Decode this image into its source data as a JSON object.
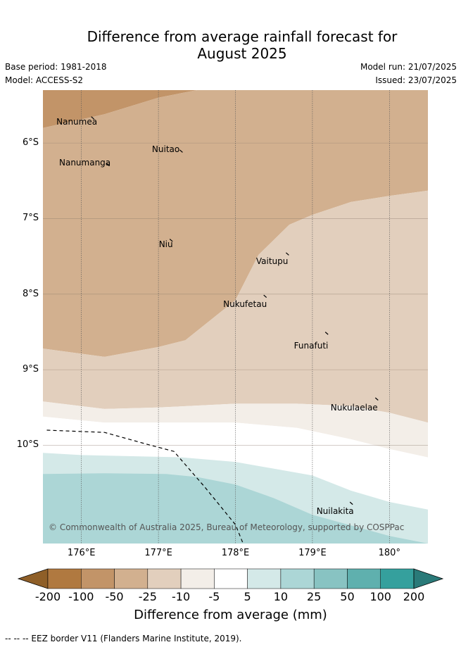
{
  "title_line1": "Difference from average rainfall forecast for",
  "title_line2": "August 2025",
  "meta": {
    "base_period": "Base period: 1981-2018",
    "model": "Model: ACCESS-S2",
    "model_run": "Model run: 21/07/2025",
    "issued": "Issued: 23/07/2025"
  },
  "axes": {
    "lat_labels": [
      "6°S",
      "7°S",
      "8°S",
      "9°S",
      "10°S"
    ],
    "lon_labels": [
      "176°E",
      "177°E",
      "178°E",
      "179°E",
      "180°"
    ]
  },
  "places": [
    {
      "name": "Nanumea",
      "lon": 176.15,
      "lat": -5.67
    },
    {
      "name": "Nuitao",
      "lon": 177.3,
      "lat": -6.11
    },
    {
      "name": "Nanumanga",
      "lon": 176.35,
      "lat": -6.29
    },
    {
      "name": "Niu",
      "lon": 177.17,
      "lat": -7.29
    },
    {
      "name": "Vaitupu",
      "lon": 178.68,
      "lat": -7.47
    },
    {
      "name": "Nukufetau",
      "lon": 178.39,
      "lat": -8.03
    },
    {
      "name": "Funafuti",
      "lon": 179.19,
      "lat": -8.52
    },
    {
      "name": "Nukulaelae",
      "lon": 179.84,
      "lat": -9.39
    },
    {
      "name": "Nuilakita",
      "lon": 179.51,
      "lat": -10.77
    }
  ],
  "copyright": "© Commonwealth of Australia 2025, Bureau of Meteorology, supported by COSPPac",
  "colorbar": {
    "labels": [
      "-200",
      "-100",
      "-50",
      "-25",
      "-10",
      "-5",
      "5",
      "10",
      "25",
      "50",
      "100",
      "200"
    ],
    "colors": [
      "#8f5f28",
      "#b07940",
      "#c29468",
      "#d2b08f",
      "#e2cfbd",
      "#f3eee8",
      "#ffffff",
      "#d4e9e8",
      "#acd6d6",
      "#88c3c2",
      "#5fb0ae",
      "#35a09d",
      "#2a7a79"
    ],
    "title": "Difference from average (mm)"
  },
  "footer": "--  --  -- EEZ border V11 (Flanders Marine Institute, 2019).",
  "chart_data": {
    "type": "map",
    "variable": "Difference from average rainfall (mm)",
    "period": "August 2025",
    "extent": {
      "lon": [
        175.5,
        180.5
      ],
      "lat": [
        -11.3,
        -5.3
      ]
    },
    "legend_classes_mm": [
      -200,
      -100,
      -50,
      -25,
      -10,
      -5,
      5,
      10,
      25,
      50,
      100,
      200
    ],
    "regions": [
      {
        "class": "-100 to -50",
        "color": "#c29468",
        "lonlat": [
          [
            175.5,
            -5.3
          ],
          [
            175.5,
            -5.8
          ],
          [
            176.3,
            -5.62
          ],
          [
            177.0,
            -5.4
          ],
          [
            177.5,
            -5.3
          ]
        ]
      },
      {
        "class": "-50 to -25",
        "color": "#d2b08f",
        "lonlat": [
          [
            175.5,
            -5.8
          ],
          [
            176.3,
            -5.62
          ],
          [
            177.0,
            -5.4
          ],
          [
            177.5,
            -5.3
          ],
          [
            180.5,
            -5.3
          ],
          [
            180.5,
            -6.63
          ],
          [
            180.0,
            -6.7
          ],
          [
            179.5,
            -6.78
          ],
          [
            179.0,
            -6.95
          ],
          [
            178.7,
            -7.08
          ],
          [
            178.3,
            -7.48
          ],
          [
            178.0,
            -8.08
          ],
          [
            177.35,
            -8.61
          ],
          [
            177.0,
            -8.7
          ],
          [
            176.3,
            -8.83
          ],
          [
            175.5,
            -8.72
          ]
        ]
      },
      {
        "class": "-25 to -10",
        "color": "#e2cfbd",
        "lonlat": [
          [
            175.5,
            -8.72
          ],
          [
            176.3,
            -8.83
          ],
          [
            177.0,
            -8.7
          ],
          [
            177.35,
            -8.61
          ],
          [
            178.0,
            -8.08
          ],
          [
            178.3,
            -7.48
          ],
          [
            178.7,
            -7.08
          ],
          [
            179.0,
            -6.95
          ],
          [
            179.5,
            -6.78
          ],
          [
            180.0,
            -6.7
          ],
          [
            180.5,
            -6.63
          ],
          [
            180.5,
            -9.7
          ],
          [
            180.0,
            -9.57
          ],
          [
            179.5,
            -9.48
          ],
          [
            178.8,
            -9.45
          ],
          [
            178.0,
            -9.45
          ],
          [
            177.0,
            -9.5
          ],
          [
            176.3,
            -9.52
          ],
          [
            175.5,
            -9.42
          ]
        ]
      },
      {
        "class": "-10 to -5",
        "color": "#f3eee8",
        "lonlat": [
          [
            175.5,
            -9.42
          ],
          [
            176.3,
            -9.52
          ],
          [
            177.0,
            -9.5
          ],
          [
            178.0,
            -9.45
          ],
          [
            178.8,
            -9.45
          ],
          [
            179.5,
            -9.48
          ],
          [
            180.0,
            -9.57
          ],
          [
            180.5,
            -9.7
          ],
          [
            180.5,
            -10.16
          ],
          [
            180.0,
            -10.05
          ],
          [
            179.5,
            -9.92
          ],
          [
            178.8,
            -9.77
          ],
          [
            178.0,
            -9.7
          ],
          [
            177.0,
            -9.7
          ],
          [
            176.3,
            -9.7
          ],
          [
            175.5,
            -9.62
          ]
        ]
      },
      {
        "class": "-5 to 5",
        "color": "#ffffff",
        "lonlat": [
          [
            175.5,
            -9.62
          ],
          [
            176.3,
            -9.7
          ],
          [
            177.0,
            -9.7
          ],
          [
            178.0,
            -9.7
          ],
          [
            178.8,
            -9.77
          ],
          [
            179.5,
            -9.92
          ],
          [
            180.0,
            -10.05
          ],
          [
            180.5,
            -10.16
          ],
          [
            180.5,
            -10.85
          ],
          [
            180.0,
            -10.75
          ],
          [
            179.5,
            -10.6
          ],
          [
            179.0,
            -10.4
          ],
          [
            178.0,
            -10.22
          ],
          [
            177.3,
            -10.16
          ],
          [
            176.0,
            -10.13
          ],
          [
            175.5,
            -10.1
          ]
        ]
      },
      {
        "class": "5 to 10",
        "color": "#d4e9e8",
        "lonlat": [
          [
            175.5,
            -10.1
          ],
          [
            176.0,
            -10.13
          ],
          [
            177.3,
            -10.16
          ],
          [
            178.0,
            -10.22
          ],
          [
            179.0,
            -10.4
          ],
          [
            179.5,
            -10.6
          ],
          [
            180.0,
            -10.75
          ],
          [
            180.5,
            -10.85
          ],
          [
            180.5,
            -11.3
          ],
          [
            175.5,
            -11.3
          ]
        ]
      },
      {
        "class": "10 to 25",
        "color": "#acd6d6",
        "lonlat": [
          [
            175.5,
            -10.38
          ],
          [
            176.3,
            -10.37
          ],
          [
            177.1,
            -10.38
          ],
          [
            177.5,
            -10.42
          ],
          [
            178.0,
            -10.52
          ],
          [
            178.5,
            -10.7
          ],
          [
            179.0,
            -10.92
          ],
          [
            180.0,
            -11.2
          ],
          [
            180.5,
            -11.3
          ],
          [
            175.5,
            -11.3
          ]
        ]
      }
    ],
    "eez_border": [
      [
        175.55,
        -9.8
      ],
      [
        176.3,
        -9.83
      ],
      [
        176.9,
        -10.0
      ],
      [
        177.2,
        -10.08
      ],
      [
        177.6,
        -10.55
      ],
      [
        178.0,
        -11.05
      ],
      [
        178.1,
        -11.3
      ]
    ]
  }
}
